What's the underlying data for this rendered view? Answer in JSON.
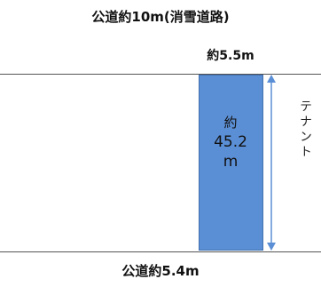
{
  "road_top": {
    "label": "公道約10m(消雪道路)"
  },
  "frontage": {
    "label": "約5.5m"
  },
  "lot": {
    "line1": "約",
    "line2": "45.2",
    "line3": "m",
    "fill_color": "#5b8fd5"
  },
  "side": {
    "label": "テナント"
  },
  "road_bottom": {
    "label": "公道約5.4m"
  },
  "arrow": {
    "color": "#5b8fd5"
  }
}
